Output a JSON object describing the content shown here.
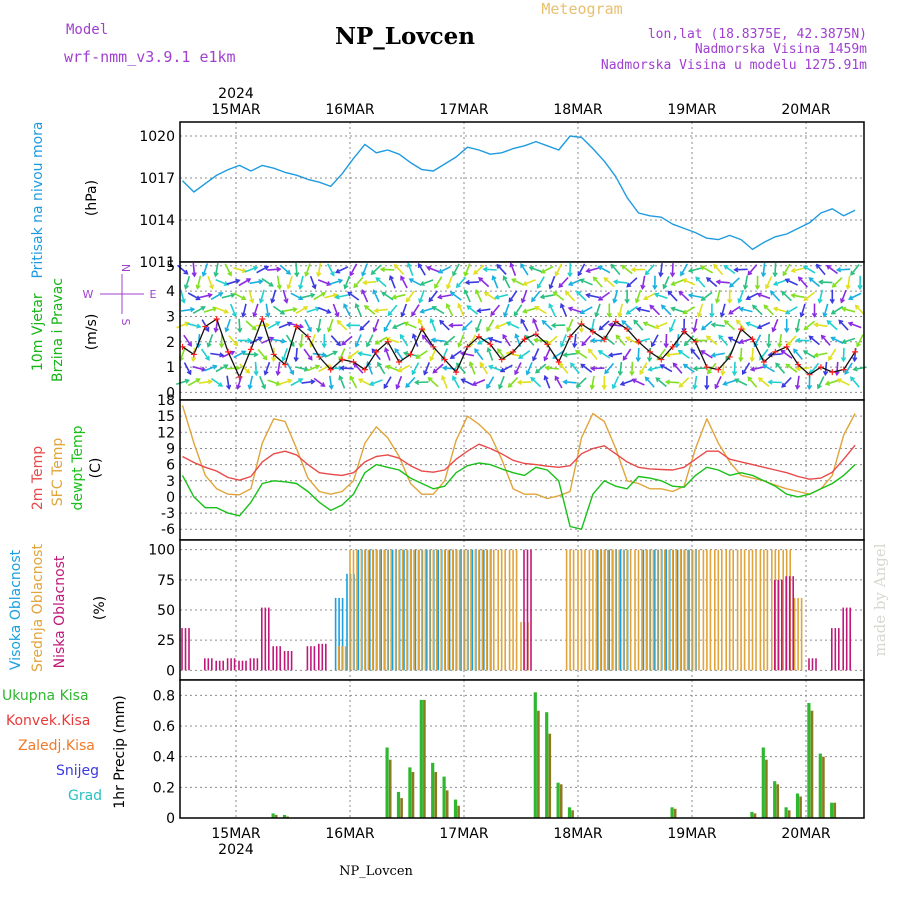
{
  "header": {
    "model_label": "Model",
    "model_name": "wrf-nmm_v3.9.1 e1km",
    "title": "NP_Lovcen",
    "meteogram_label": "Meteogram",
    "lonlat": "lon,lat (18.8375E, 42.3875N)",
    "altitude": "Nadmorska Visina 1459m",
    "model_altitude": "Nadmorska Visina u modelu 1275.91m",
    "watermark": "made by Angel",
    "footer_station": "NP_Lovcen"
  },
  "colors": {
    "pressure": "#1e9be0",
    "wind_label": "#16b516",
    "temp2m": "#e84a4a",
    "sfc": "#e0a43a",
    "dewpt": "#18c018",
    "cloud_high": "#1aa0e0",
    "cloud_mid": "#e0a43a",
    "cloud_low": "#c0187a",
    "precip_total": "#2fb82f",
    "precip_conv": "#e83a3a",
    "precip_frozen": "#f07a2a",
    "snow": "#3a3ae0",
    "graupel": "#2ac0c0",
    "header_purple": "#a040d0",
    "meteogram_gold": "#e8c070"
  },
  "time_axis": {
    "year": "2024",
    "days": [
      "15MAR",
      "16MAR",
      "17MAR",
      "18MAR",
      "19MAR",
      "20MAR"
    ]
  },
  "chart_data": [
    {
      "type": "line",
      "panel": "pressure",
      "ylabel_name": "Pritisak na nivou mora",
      "unit": "(hPa)",
      "yticks": [
        "1011",
        "1014",
        "1017",
        "1020"
      ],
      "ylim": [
        1011,
        1021
      ],
      "grid": true,
      "x_start": "14MAR 12h",
      "x_step_hours": 3,
      "series": [
        {
          "values": [
            1016.8,
            1016.0,
            1016.6,
            1017.2,
            1017.6,
            1017.9,
            1017.5,
            1017.9,
            1017.7,
            1017.4,
            1017.2,
            1016.9,
            1016.7,
            1016.4,
            1017.3,
            1018.4,
            1019.4,
            1018.8,
            1019.0,
            1018.7,
            1018.1,
            1017.6,
            1017.5,
            1018.0,
            1018.5,
            1019.2,
            1019.0,
            1018.7,
            1018.8,
            1019.1,
            1019.3,
            1019.6,
            1019.3,
            1019.0,
            1020.0,
            1019.9,
            1019.1,
            1018.2,
            1017.1,
            1015.6,
            1014.5,
            1014.3,
            1014.2,
            1013.7,
            1013.4,
            1013.1,
            1012.7,
            1012.6,
            1012.9,
            1012.6,
            1011.9,
            1012.4,
            1012.8,
            1013.0,
            1013.4,
            1013.8,
            1014.5,
            1014.8,
            1014.3,
            1014.7
          ]
        }
      ]
    },
    {
      "type": "line",
      "panel": "wind",
      "ylabel_name": "10m Vjetar Brzina i Pravac",
      "unit": "(m/s)",
      "compass": [
        "N",
        "E",
        "S",
        "W"
      ],
      "yticks": [
        "0",
        "1",
        "2",
        "3",
        "4",
        "5"
      ],
      "ylim": [
        0,
        5
      ],
      "grid": true,
      "x_start": "14MAR 12h",
      "x_step_hours": 3,
      "series": [
        {
          "values": [
            1.8,
            1.5,
            2.6,
            2.9,
            1.6,
            0.6,
            1.7,
            2.9,
            1.5,
            1.1,
            2.6,
            2.2,
            1.4,
            0.9,
            1.3,
            1.2,
            0.9,
            1.6,
            2.0,
            1.2,
            1.5,
            2.5,
            1.8,
            1.3,
            0.8,
            1.8,
            2.2,
            1.9,
            1.3,
            1.6,
            2.1,
            2.3,
            1.9,
            1.2,
            2.2,
            2.7,
            2.4,
            2.1,
            2.8,
            2.5,
            2.0,
            1.6,
            1.3,
            1.8,
            2.4,
            2.0,
            1.0,
            0.9,
            1.4,
            2.5,
            2.1,
            1.2,
            1.6,
            1.8,
            1.1,
            0.7,
            1.0,
            0.8,
            0.9,
            1.6
          ]
        }
      ]
    },
    {
      "type": "line",
      "panel": "temperature",
      "ylabel_names": [
        "2m Temp",
        "SFC Temp",
        "dewpt Temp"
      ],
      "unit": "(C)",
      "yticks": [
        "-6",
        "-3",
        "0",
        "3",
        "6",
        "9",
        "12",
        "15",
        "18"
      ],
      "ylim": [
        -8,
        18
      ],
      "grid": true,
      "x_start": "14MAR 12h",
      "x_step_hours": 3,
      "series": [
        {
          "key": "t2m",
          "values": [
            7.5,
            6.4,
            5.5,
            4.8,
            3.6,
            3.1,
            3.8,
            6.5,
            8.0,
            8.5,
            7.8,
            6.0,
            4.5,
            4.2,
            4.0,
            4.5,
            6.5,
            7.5,
            7.8,
            7.2,
            5.8,
            4.8,
            4.6,
            5.0,
            7.0,
            8.5,
            9.8,
            9.0,
            8.0,
            6.8,
            6.2,
            6.0,
            5.7,
            5.5,
            5.8,
            8.0,
            9.0,
            9.5,
            8.0,
            6.5,
            5.5,
            5.2,
            5.1,
            5.0,
            5.5,
            7.0,
            8.5,
            8.5,
            7.0,
            6.5,
            6.0,
            5.5,
            5.0,
            4.5,
            3.8,
            3.3,
            3.5,
            4.6,
            7.0,
            9.6
          ]
        },
        {
          "key": "sfc",
          "values": [
            17.0,
            10.0,
            4.0,
            1.5,
            0.5,
            0.4,
            1.5,
            10.0,
            14.5,
            14.0,
            9.0,
            3.5,
            1.0,
            0.5,
            1.0,
            3.0,
            10.0,
            13.0,
            11.0,
            7.5,
            2.5,
            0.5,
            0.5,
            3.0,
            10.5,
            15.0,
            13.5,
            11.5,
            7.0,
            1.5,
            0.5,
            0.5,
            -0.3,
            0.2,
            1.0,
            11.0,
            15.5,
            14.0,
            9.0,
            3.0,
            2.5,
            1.5,
            1.5,
            1.0,
            2.0,
            9.0,
            14.5,
            10.0,
            6.5,
            4.0,
            3.5,
            3.0,
            2.2,
            1.5,
            1.0,
            0.5,
            1.5,
            4.0,
            11.5,
            15.5
          ]
        },
        {
          "key": "dewpt",
          "values": [
            4.0,
            0.0,
            -2.0,
            -2.0,
            -3.0,
            -3.5,
            -1.0,
            2.5,
            3.0,
            2.8,
            2.5,
            1.0,
            -1.0,
            -2.5,
            -1.5,
            0.5,
            4.5,
            6.0,
            5.5,
            5.0,
            3.5,
            2.5,
            1.5,
            2.0,
            4.5,
            5.8,
            6.3,
            6.0,
            5.2,
            4.5,
            4.0,
            5.5,
            5.0,
            3.0,
            -5.5,
            -6.0,
            0.5,
            3.0,
            2.0,
            1.5,
            3.8,
            3.5,
            3.0,
            2.0,
            1.8,
            4.0,
            5.5,
            5.0,
            4.0,
            4.5,
            4.0,
            3.0,
            2.0,
            0.5,
            0.0,
            0.5,
            1.5,
            2.5,
            4.0,
            6.0
          ]
        }
      ]
    },
    {
      "type": "bar",
      "panel": "clouds",
      "ylabel_names": [
        "Visoka Oblacnost",
        "Srednja Oblacnost",
        "Niska Oblacnost"
      ],
      "unit": "(%)",
      "yticks": [
        "0",
        "25",
        "50",
        "75",
        "100"
      ],
      "ylim": [
        0,
        100
      ],
      "grid": true,
      "x_start": "14MAR 12h",
      "x_step_hours": 3,
      "series": [
        {
          "key": "high",
          "values": [
            0,
            0,
            0,
            0,
            0,
            0,
            0,
            0,
            0,
            0,
            0,
            0,
            0,
            0,
            60,
            80,
            100,
            100,
            100,
            100,
            100,
            100,
            100,
            100,
            100,
            100,
            100,
            100,
            0,
            0,
            0,
            0,
            0,
            0,
            0,
            0,
            0,
            100,
            100,
            100,
            0,
            100,
            100,
            100,
            100,
            100,
            0,
            0,
            0,
            0,
            0,
            0,
            0,
            0,
            0,
            0,
            0,
            0,
            0,
            0
          ]
        },
        {
          "key": "mid",
          "values": [
            0,
            0,
            0,
            0,
            0,
            0,
            0,
            0,
            0,
            0,
            0,
            0,
            0,
            0,
            20,
            100,
            100,
            100,
            100,
            100,
            100,
            100,
            100,
            100,
            100,
            100,
            100,
            100,
            100,
            100,
            40,
            0,
            0,
            0,
            100,
            100,
            100,
            100,
            100,
            100,
            100,
            100,
            100,
            100,
            100,
            100,
            100,
            100,
            100,
            100,
            100,
            100,
            100,
            100,
            60,
            0,
            0,
            0,
            0,
            0
          ]
        },
        {
          "key": "low",
          "values": [
            35,
            0,
            10,
            8,
            10,
            8,
            10,
            52,
            20,
            16,
            0,
            20,
            22,
            0,
            0,
            0,
            0,
            0,
            0,
            0,
            0,
            0,
            0,
            0,
            0,
            0,
            0,
            0,
            0,
            0,
            100,
            0,
            0,
            0,
            0,
            0,
            0,
            0,
            0,
            0,
            0,
            0,
            0,
            0,
            0,
            0,
            0,
            0,
            0,
            0,
            0,
            0,
            75,
            78,
            0,
            10,
            0,
            35,
            52,
            0
          ]
        }
      ]
    },
    {
      "type": "bar",
      "panel": "precip",
      "ylabel_names": [
        "Ukupna Kisa",
        "Konvek.Kisa",
        "Zaledj.Kisa",
        "Snijeg",
        "Grad"
      ],
      "unit": "1hr Precip (mm)",
      "yticks": [
        "0",
        "0.2",
        "0.4",
        "0.6",
        "0.8"
      ],
      "ylim": [
        0,
        0.9
      ],
      "grid": true,
      "x_start": "14MAR 12h",
      "x_step_hours": 3,
      "series": [
        {
          "key": "total",
          "values": [
            0,
            0,
            0,
            0,
            0,
            0,
            0,
            0,
            0.03,
            0.02,
            0,
            0,
            0,
            0,
            0,
            0,
            0,
            0,
            0.46,
            0.17,
            0.33,
            0.77,
            0.36,
            0.27,
            0.12,
            0,
            0,
            0,
            0,
            0,
            0,
            0.82,
            0.69,
            0.23,
            0.07,
            0,
            0,
            0,
            0,
            0,
            0,
            0,
            0,
            0.07,
            0,
            0,
            0,
            0,
            0,
            0,
            0.04,
            0.46,
            0.24,
            0.07,
            0.16,
            0.75,
            0.42,
            0.1,
            0,
            0
          ]
        },
        {
          "key": "conv",
          "values": [
            0,
            0,
            0,
            0,
            0,
            0,
            0,
            0,
            0.02,
            0.01,
            0,
            0,
            0,
            0,
            0,
            0,
            0,
            0,
            0.38,
            0.13,
            0.3,
            0.77,
            0.3,
            0.18,
            0.08,
            0,
            0,
            0,
            0,
            0,
            0,
            0.7,
            0.55,
            0.22,
            0.05,
            0,
            0,
            0,
            0,
            0,
            0,
            0,
            0,
            0.06,
            0,
            0,
            0,
            0,
            0,
            0,
            0.03,
            0.38,
            0.22,
            0.05,
            0.14,
            0.7,
            0.4,
            0.1,
            0,
            0
          ]
        }
      ]
    }
  ]
}
